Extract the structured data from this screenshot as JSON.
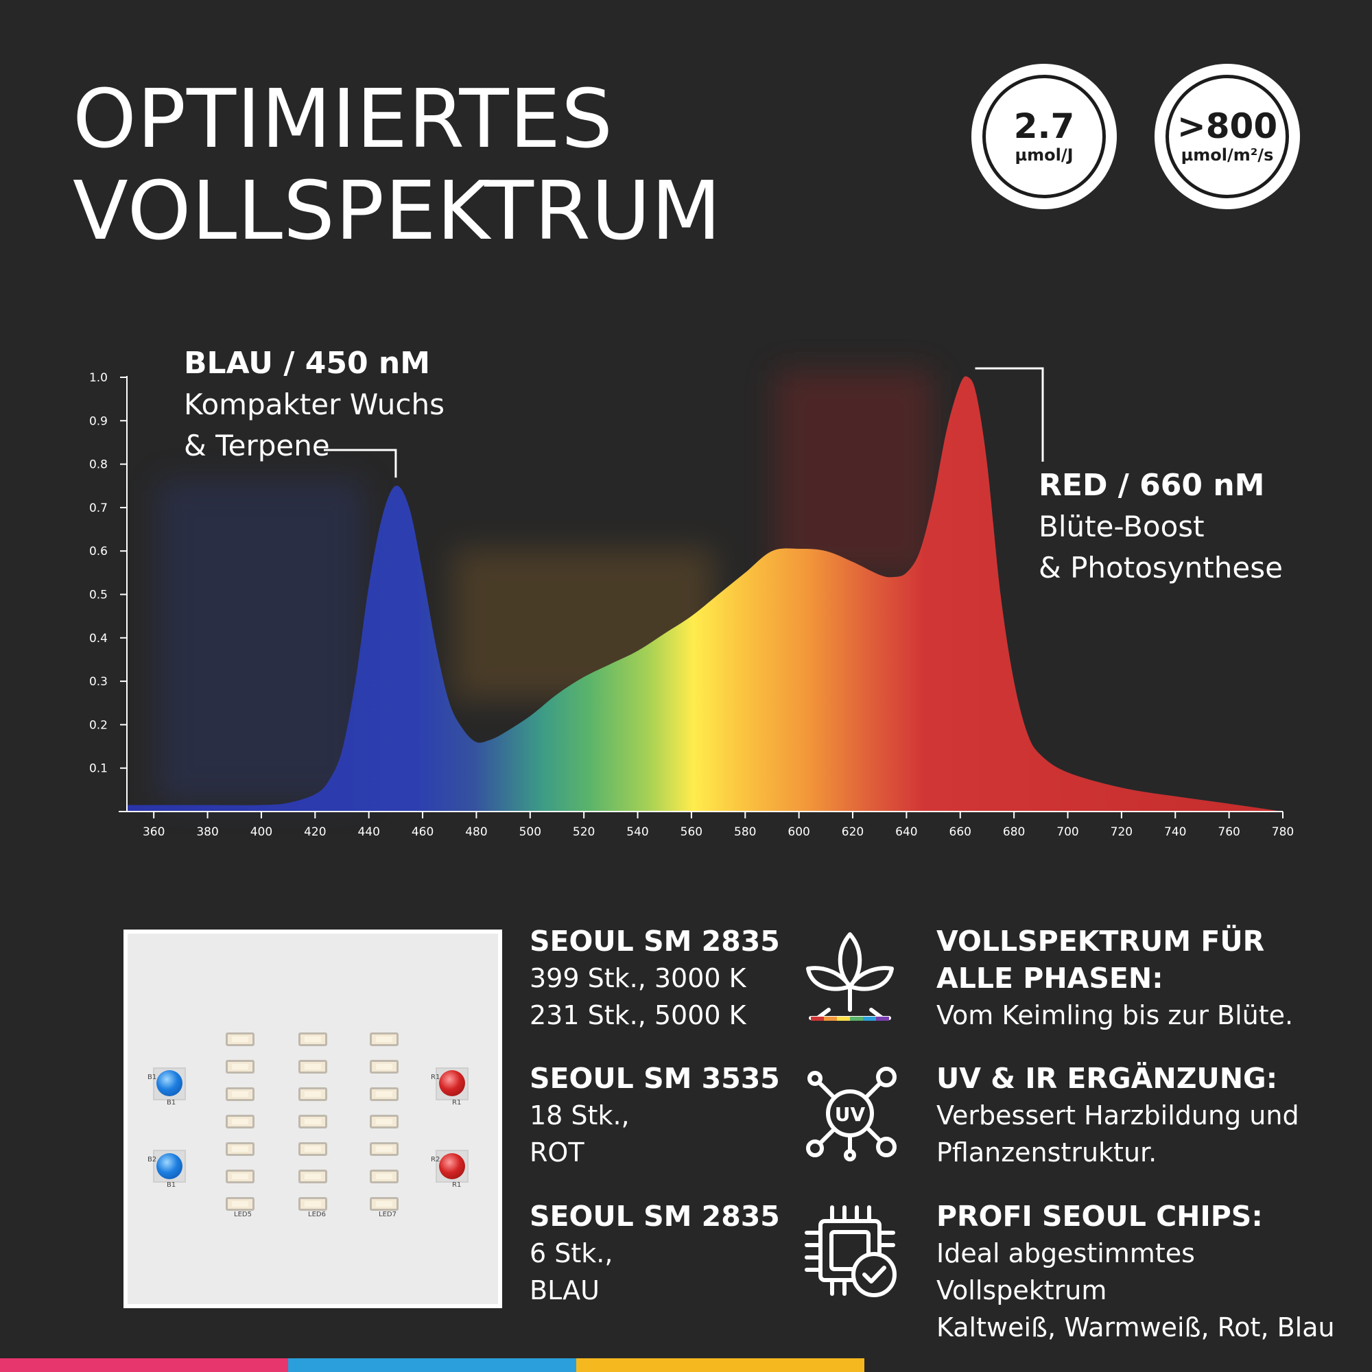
{
  "title": {
    "line1": "OPTIMIERTES",
    "line2": "VOLLSPEKTRUM"
  },
  "badges": [
    {
      "value": "2.7",
      "unit": "µmol/J"
    },
    {
      "value": ">800",
      "unit": "µmol/m²/s"
    }
  ],
  "chart_data": {
    "type": "area",
    "title": "",
    "xlabel": "",
    "ylabel": "",
    "xlim": [
      350,
      780
    ],
    "ylim": [
      0,
      1.0
    ],
    "x_ticks": [
      360,
      380,
      400,
      420,
      440,
      460,
      480,
      500,
      520,
      540,
      560,
      580,
      600,
      620,
      640,
      660,
      680,
      700,
      720,
      740,
      760,
      780
    ],
    "y_ticks": [
      0.1,
      0.2,
      0.3,
      0.4,
      0.5,
      0.6,
      0.7,
      0.8,
      0.9,
      1.0
    ],
    "x_tick_labels": [
      "360",
      "380",
      "400",
      "420",
      "440",
      "460",
      "480",
      "500",
      "520",
      "540",
      "560",
      "580",
      "600",
      "620",
      "640",
      "660",
      "680",
      "700",
      "720",
      "740",
      "760",
      "780"
    ],
    "y_tick_labels": [
      "0.1",
      "0.2",
      "0.3",
      "0.4",
      "0.5",
      "0.6",
      "0.7",
      "0.8",
      "0.9",
      "1.0"
    ],
    "grid": false,
    "x": [
      350,
      360,
      380,
      400,
      410,
      420,
      425,
      430,
      435,
      440,
      445,
      450,
      455,
      460,
      465,
      470,
      475,
      480,
      485,
      490,
      500,
      510,
      520,
      530,
      540,
      550,
      560,
      570,
      580,
      590,
      600,
      610,
      620,
      630,
      635,
      640,
      645,
      650,
      655,
      660,
      663,
      666,
      670,
      675,
      680,
      685,
      690,
      700,
      720,
      740,
      760,
      780
    ],
    "y": [
      0.015,
      0.015,
      0.015,
      0.015,
      0.02,
      0.04,
      0.07,
      0.14,
      0.3,
      0.52,
      0.68,
      0.75,
      0.7,
      0.55,
      0.38,
      0.25,
      0.19,
      0.16,
      0.165,
      0.18,
      0.22,
      0.27,
      0.31,
      0.34,
      0.37,
      0.41,
      0.45,
      0.5,
      0.55,
      0.6,
      0.605,
      0.6,
      0.575,
      0.545,
      0.54,
      0.55,
      0.6,
      0.72,
      0.88,
      0.985,
      1.0,
      0.96,
      0.8,
      0.5,
      0.3,
      0.18,
      0.13,
      0.09,
      0.055,
      0.035,
      0.018,
      0.0
    ],
    "annotations": [
      {
        "heading": "BLAU / 450 nM",
        "lines": [
          "Kompakter Wuchs",
          "& Terpene"
        ],
        "x": 450,
        "y": 0.75
      },
      {
        "heading": "RED / 660 nM",
        "lines": [
          "Blüte-Boost",
          "& Photosynthese"
        ],
        "x": 663,
        "y": 1.0
      }
    ],
    "colors": [
      "#2b3aa8",
      "#3b62b8",
      "#3fae7a",
      "#8cc84a",
      "#ffeb4c",
      "#f9b23b",
      "#e8702a",
      "#d03030"
    ]
  },
  "led_board": {
    "smd_columns": [
      "LED5",
      "LED6",
      "LED7"
    ],
    "blue_leds": [
      {
        "ref": "B1",
        "sub": "B1"
      },
      {
        "ref": "B2",
        "sub": "B1"
      }
    ],
    "red_leds": [
      {
        "ref": "R1",
        "sub": "R1"
      },
      {
        "ref": "R2",
        "sub": "R1"
      }
    ]
  },
  "specs": [
    {
      "heading": "SEOUL SM 2835",
      "lines": [
        "399 Stk., 3000 K",
        "231 Stk., 5000 K"
      ]
    },
    {
      "heading": "SEOUL SM 3535",
      "lines": [
        "18 Stk.,",
        "ROT"
      ]
    },
    {
      "heading": "SEOUL SM 2835",
      "lines": [
        "6 Stk.,",
        "BLAU"
      ]
    }
  ],
  "features": [
    {
      "icon": "plant-icon",
      "heading_lines": [
        "VOLLSPEKTRUM FÜR",
        "ALLE PHASEN:"
      ],
      "lines": [
        "Vom Keimling bis zur Blüte."
      ]
    },
    {
      "icon": "uv-molecule-icon",
      "icon_text": "UV",
      "heading_lines": [
        "UV & IR ERGÄNZUNG:"
      ],
      "lines": [
        "Verbessert Harzbildung und",
        "Pflanzenstruktur."
      ]
    },
    {
      "icon": "chip-check-icon",
      "heading_lines": [
        "PROFI SEOUL CHIPS:"
      ],
      "lines": [
        "Ideal abgestimmtes Vollspektrum",
        "Kaltweiß, Warmweiß, Rot, Blau"
      ]
    }
  ],
  "stripe_colors": [
    "#e7356e",
    "#2a9fdc",
    "#f6b81f"
  ]
}
